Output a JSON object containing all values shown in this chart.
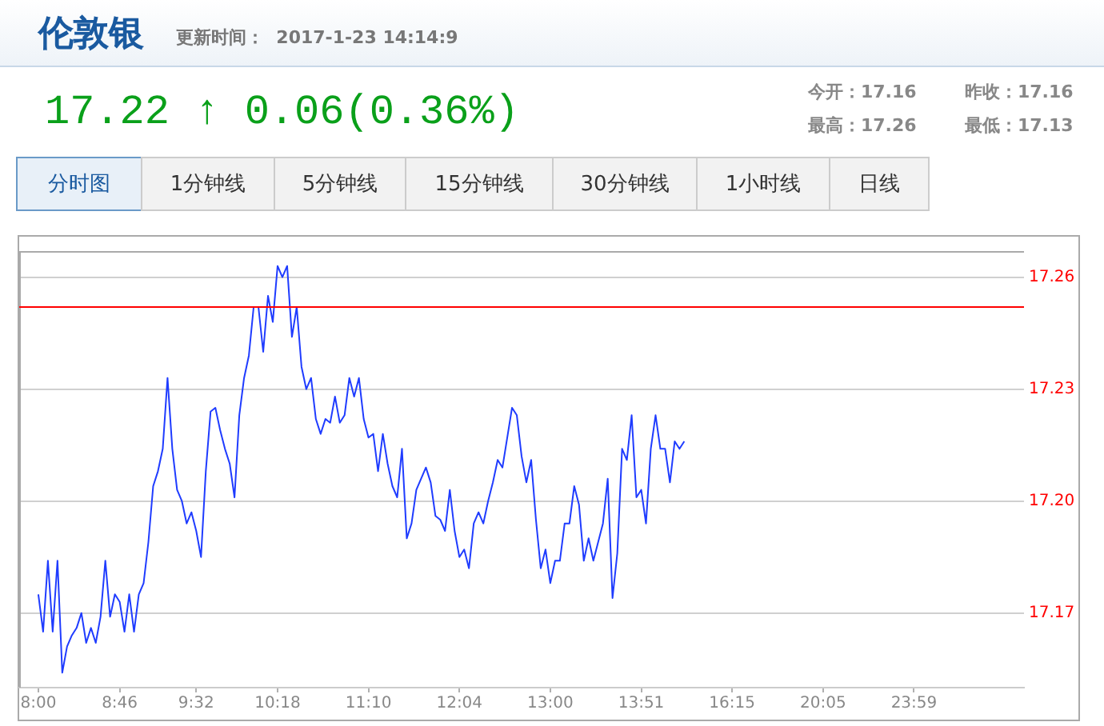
{
  "chart_data": {
    "type": "line",
    "title": "伦敦银",
    "subtitle": "更新时间：  2017-1-23 14:14:9",
    "annotations": [
      "17.22 ↑ 0.06(0.36%)",
      "今开：17.16",
      "昨收：17.16",
      "最高：17.26",
      "最低：17.13",
      "分时图",
      "1分钟线",
      "5分钟线",
      "15分钟线",
      "30分钟线",
      "1小时线",
      "日线"
    ],
    "categories": [
      null,
      null,
      null,
      null,
      "8:00",
      null,
      null,
      null,
      null,
      null,
      null,
      null,
      null,
      null,
      null,
      null,
      null,
      null,
      null,
      null,
      null,
      "8:46",
      null,
      null,
      null,
      null,
      null,
      null,
      null,
      null,
      null,
      null,
      null,
      null,
      null,
      null,
      null,
      "9:32",
      null,
      null,
      null,
      null,
      null,
      null,
      null,
      null,
      null,
      null,
      null,
      null,
      null,
      null,
      null,
      null,
      "10:18",
      null,
      null,
      null,
      null,
      null,
      null,
      null,
      null,
      null,
      null,
      null,
      null,
      null,
      null,
      null,
      null,
      null,
      null,
      "11:10",
      null,
      null,
      null,
      null,
      null,
      null,
      null,
      null,
      null,
      null,
      null,
      null,
      null,
      null,
      null,
      null,
      null,
      null,
      "12:04",
      null,
      null,
      null,
      null,
      null,
      null,
      null,
      null,
      null,
      null,
      null,
      null,
      null,
      null,
      null,
      null,
      null,
      null,
      "13:00",
      null,
      null,
      null,
      null,
      null,
      null,
      null,
      null,
      null,
      null,
      null,
      null,
      null,
      null,
      null,
      null,
      null,
      null,
      "13:51",
      null,
      null,
      null,
      null,
      null,
      null,
      null,
      null,
      null,
      null,
      null,
      null,
      null,
      null,
      null,
      null,
      null,
      null,
      "16:15",
      null,
      null,
      null,
      null,
      null,
      null,
      null,
      null,
      null,
      null,
      null,
      null,
      null,
      null,
      null,
      null,
      null,
      null,
      "20:05",
      null,
      null,
      null,
      null,
      null,
      null,
      null,
      null,
      null,
      null,
      null,
      null,
      null,
      null,
      null,
      null,
      null,
      null,
      "23:59",
      null,
      null,
      null,
      null,
      null,
      null,
      null,
      null,
      null,
      null,
      null,
      null,
      null,
      null,
      null,
      null,
      null,
      null,
      null,
      null,
      null,
      null,
      null
    ],
    "series": [
      {
        "color": "#1f3cff",
        "values": [
          null,
          null,
          null,
          null,
          17.175,
          17.165,
          17.184,
          17.165,
          17.184,
          17.154,
          17.161,
          17.164,
          17.166,
          17.17,
          17.162,
          17.166,
          17.162,
          17.169,
          17.184,
          17.169,
          17.175,
          17.173,
          17.165,
          17.175,
          17.165,
          17.175,
          17.178,
          17.189,
          17.204,
          17.208,
          17.214,
          17.233,
          17.214,
          17.203,
          17.2,
          17.194,
          17.197,
          17.192,
          17.185,
          17.208,
          17.224,
          17.225,
          17.219,
          17.214,
          17.21,
          17.201,
          17.223,
          17.233,
          17.239,
          17.252,
          17.252,
          17.24,
          17.255,
          17.248,
          17.263,
          17.26,
          17.263,
          17.244,
          17.252,
          17.236,
          17.23,
          17.233,
          17.222,
          17.218,
          17.222,
          17.221,
          17.228,
          17.221,
          17.223,
          17.233,
          17.228,
          17.233,
          17.222,
          17.217,
          17.218,
          17.208,
          17.218,
          17.21,
          17.204,
          17.201,
          17.214,
          17.19,
          17.194,
          17.203,
          17.206,
          17.209,
          17.205,
          17.196,
          17.195,
          17.192,
          17.203,
          17.192,
          17.185,
          17.187,
          17.182,
          17.194,
          17.197,
          17.194,
          17.2,
          17.205,
          17.211,
          17.209,
          17.217,
          17.225,
          17.223,
          17.212,
          17.205,
          17.211,
          17.195,
          17.182,
          17.187,
          17.178,
          17.184,
          17.184,
          17.194,
          17.194,
          17.204,
          17.199,
          17.184,
          17.19,
          17.184,
          17.189,
          17.194,
          17.206,
          17.174,
          17.186,
          17.214,
          17.211,
          17.223,
          17.201,
          17.203,
          17.194,
          17.214,
          17.223,
          17.214,
          17.214,
          17.205,
          17.216,
          17.214,
          17.216,
          null,
          null,
          null,
          null,
          null,
          null,
          null,
          null,
          null,
          null,
          null,
          null,
          null,
          null,
          null,
          null,
          null,
          null,
          null,
          null,
          null,
          null,
          null,
          null,
          null,
          null,
          null,
          null,
          null,
          null,
          null,
          null,
          null,
          null,
          null,
          null,
          null,
          null,
          null,
          null,
          null,
          null,
          null,
          null,
          null,
          null,
          null,
          null,
          null,
          null,
          null,
          null,
          null,
          null,
          null,
          null,
          null,
          null,
          null,
          null,
          null,
          null,
          null,
          null,
          null,
          null,
          null,
          null,
          null,
          null,
          null
        ]
      }
    ],
    "ylim": [
      17.15,
      17.267
    ],
    "yticks": [
      17.17,
      {
        "value": 17.2,
        "label": "17.20"
      },
      17.23,
      17.26
    ],
    "ref_lines": [
      {
        "axis": "y",
        "value": 17.252,
        "color": "#ff0000"
      }
    ],
    "grid": "y",
    "legend": false
  }
}
